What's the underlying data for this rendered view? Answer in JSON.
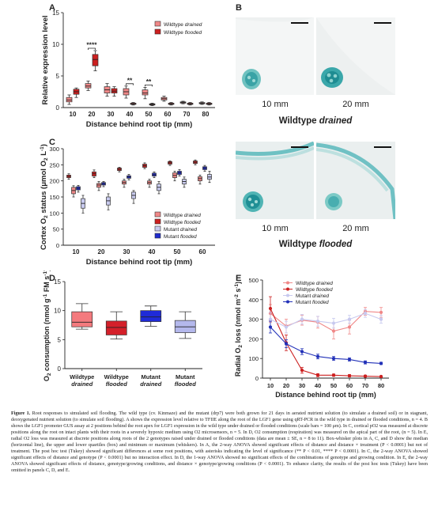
{
  "panels": {
    "A": {
      "letter": "A",
      "chart_data": {
        "type": "box",
        "ylabel": "Relative expression level",
        "xlabel": "Distance behind root tip (mm)",
        "ylim": [
          0,
          15
        ],
        "yticks": [
          0,
          5,
          10,
          15
        ],
        "categories": [
          "10",
          "20",
          "30",
          "40",
          "50",
          "60",
          "70",
          "80"
        ],
        "series": [
          {
            "name": "Wildtype drained",
            "color": "#f08888",
            "boxes": [
              [
                0.5,
                0.9,
                1.2,
                1.6,
                2.0
              ],
              [
                2.7,
                3.1,
                3.4,
                3.8,
                4.2
              ],
              [
                1.8,
                2.3,
                2.8,
                3.3,
                3.8
              ],
              [
                1.5,
                2.0,
                2.5,
                3.0,
                3.4
              ],
              [
                1.4,
                2.0,
                2.3,
                2.8,
                3.2
              ],
              [
                1.0,
                1.2,
                1.4,
                1.6,
                1.8
              ],
              [
                0.6,
                0.7,
                0.8,
                0.9,
                1.0
              ],
              [
                0.5,
                0.6,
                0.7,
                0.8,
                0.9
              ]
            ]
          },
          {
            "name": "Wildtype flooded",
            "color": "#cc2020",
            "boxes": [
              [
                1.6,
                2.1,
                2.5,
                2.9,
                3.1
              ],
              [
                5.8,
                6.6,
                7.6,
                8.4,
                9.0
              ],
              [
                1.8,
                2.3,
                2.6,
                3.0,
                3.3
              ],
              [
                0.4,
                0.5,
                0.6,
                0.7,
                0.8
              ],
              [
                0.3,
                0.4,
                0.5,
                0.6,
                0.7
              ],
              [
                0.4,
                0.5,
                0.6,
                0.7,
                0.8
              ],
              [
                0.4,
                0.5,
                0.6,
                0.7,
                0.8
              ],
              [
                0.4,
                0.5,
                0.6,
                0.7,
                0.8
              ]
            ]
          }
        ],
        "legend": [
          "Wildtype drained",
          "Wildtype flooded"
        ],
        "legend_italic": [
          "drained",
          "flooded"
        ],
        "annotations": [
          {
            "category": "20",
            "text": "****"
          },
          {
            "category": "40",
            "text": "**"
          },
          {
            "category": "50",
            "text": "**"
          }
        ]
      }
    },
    "B": {
      "letter": "B",
      "images": [
        {
          "label": "10 mm"
        },
        {
          "label": "20 mm"
        },
        {
          "label": "10 mm"
        },
        {
          "label": "20 mm"
        }
      ],
      "conditions": [
        {
          "genotype": "Wildtype",
          "treatment": "drained"
        },
        {
          "genotype": "Wildtype",
          "treatment": "flooded"
        }
      ]
    },
    "C": {
      "letter": "C",
      "chart_data": {
        "type": "box",
        "ylabel": "Cortex O2 status (μmol O2 L-1)",
        "ylabel_parts": [
          "Cortex O",
          "2",
          " status (μmol O",
          "2",
          " L",
          "-1",
          ")"
        ],
        "xlabel": "Distance behind root tip (mm)",
        "ylim": [
          0,
          300
        ],
        "yticks": [
          0,
          50,
          100,
          150,
          200,
          250,
          300
        ],
        "categories": [
          "10",
          "20",
          "30",
          "40",
          "50",
          "60"
        ],
        "series": [
          {
            "name": "Wildtype drained",
            "color": "#f08888",
            "boxes": [
              [
                150,
                160,
                170,
                180,
                185
              ],
              [
                170,
                180,
                187,
                192,
                198
              ],
              [
                180,
                190,
                195,
                200,
                205
              ],
              [
                180,
                190,
                195,
                200,
                205
              ],
              [
                200,
                210,
                217,
                225,
                230
              ],
              [
                190,
                200,
                207,
                213,
                218
              ]
            ]
          },
          {
            "name": "Wildtype flooded",
            "color": "#cc2020",
            "boxes": [
              [
                205,
                210,
                214,
                218,
                222
              ],
              [
                210,
                215,
                222,
                228,
                234
              ],
              [
                228,
                232,
                236,
                240,
                242
              ],
              [
                238,
                242,
                247,
                252,
                256
              ],
              [
                248,
                252,
                256,
                260,
                262
              ],
              [
                250,
                254,
                258,
                262,
                265
              ]
            ]
          },
          {
            "name": "Mutant drained",
            "color": "#c9cbef",
            "boxes": [
              [
                100,
                115,
                130,
                145,
                155
              ],
              [
                110,
                125,
                138,
                150,
                160
              ],
              [
                130,
                145,
                155,
                165,
                170
              ],
              [
                160,
                170,
                180,
                190,
                198
              ],
              [
                180,
                190,
                198,
                205,
                212
              ],
              [
                195,
                205,
                212,
                220,
                230
              ]
            ]
          },
          {
            "name": "Mutant flooded",
            "color": "#1f2bcc",
            "boxes": [
              [
                165,
                172,
                177,
                182,
                186
              ],
              [
                182,
                187,
                191,
                195,
                198
              ],
              [
                203,
                208,
                212,
                216,
                220
              ],
              [
                210,
                215,
                219,
                224,
                228
              ],
              [
                215,
                220,
                225,
                230,
                235
              ],
              [
                230,
                235,
                240,
                244,
                248
              ]
            ]
          }
        ],
        "legend": [
          "Wildtype drained",
          "Wildtype flooded",
          "Mutant drained",
          "Mutant flooded"
        ],
        "legend_italic": [
          "drained",
          "flooded",
          "drained",
          "flooded"
        ]
      }
    },
    "D": {
      "letter": "D",
      "chart_data": {
        "type": "box",
        "ylabel": "O2 consumption (nmol g-1 FM s-1)",
        "ylabel_parts": [
          "O",
          "2",
          " consumption (nmol g",
          "-1",
          " FM s",
          "-1",
          ")"
        ],
        "ylim": [
          0,
          15
        ],
        "yticks": [
          0,
          5,
          10,
          15
        ],
        "categories": [
          {
            "line1": "Wildtype",
            "line2": "drained"
          },
          {
            "line1": "Wildtype",
            "line2": "flooded"
          },
          {
            "line1": "Mutant",
            "line2": "drained"
          },
          {
            "line1": "Mutant",
            "line2": "flooded"
          }
        ],
        "boxes": [
          {
            "color": "#f47a7e",
            "values": [
              6.8,
              7.2,
              8.0,
              9.8,
              11.2
            ]
          },
          {
            "color": "#d4202a",
            "values": [
              5.1,
              5.8,
              7.1,
              8.2,
              9.8
            ]
          },
          {
            "color": "#1f2bd8",
            "values": [
              7.3,
              8.1,
              8.9,
              10.0,
              10.8
            ]
          },
          {
            "color": "#b4b8ec",
            "values": [
              5.2,
              6.2,
              7.2,
              8.3,
              9.8
            ]
          }
        ]
      }
    },
    "E": {
      "letter": "E",
      "chart_data": {
        "type": "line",
        "ylabel": "Radial O2 loss (nmol m-2 s-1)",
        "ylabel_parts": [
          "Radial O",
          "2",
          " loss (nmol m",
          "-2",
          " s",
          "-1",
          ")"
        ],
        "xlabel": "Distance behind root tip (mm)",
        "ylim": [
          0,
          500
        ],
        "yticks": [
          0,
          100,
          200,
          300,
          400,
          500
        ],
        "x": [
          10,
          20,
          30,
          40,
          50,
          60,
          70,
          80
        ],
        "series": [
          {
            "name": "Wildtype drained",
            "color": "#f08888",
            "values": [
              330,
              265,
              295,
              285,
              240,
              260,
              340,
              335
            ],
            "errors": [
              45,
              35,
              25,
              30,
              40,
              35,
              20,
              25
            ]
          },
          {
            "name": "Wildtype flooded",
            "color": "#cc2020",
            "values": [
              355,
              180,
              40,
              15,
              15,
              12,
              10,
              8
            ],
            "errors": [
              60,
              40,
              15,
              8,
              6,
              6,
              5,
              4
            ]
          },
          {
            "name": "Mutant drained",
            "color": "#c7c9ef",
            "values": [
              300,
              260,
              300,
              290,
              280,
              300,
              330,
              300
            ],
            "errors": [
              35,
              30,
              25,
              25,
              25,
              20,
              20,
              20
            ]
          },
          {
            "name": "Mutant flooded",
            "color": "#2231b8",
            "values": [
              260,
              175,
              135,
              110,
              100,
              95,
              80,
              75
            ],
            "errors": [
              30,
              20,
              15,
              12,
              10,
              8,
              8,
              6
            ]
          }
        ],
        "legend": [
          "Wildtype drained",
          "Wildtype flooded",
          "Mutant drained",
          "Mutant flooded"
        ],
        "legend_italic": [
          "drained",
          "flooded",
          "drained",
          "flooded"
        ]
      }
    }
  },
  "caption": {
    "lead": "Figure 1.",
    "text": " Root responses to simulated soil flooding. The wild type (cv. Kinmaze) and the mutant (drp7) were both grown for 21 days in aerated nutrient solution (to simulate a drained soil) or in stagnant, deoxygenated nutrient solution (to simulate soil flooding). A shows the expression level relative to TFIIE along the root of the LGF1 gene using qRT-PCR in the wild type in drained or flooded conditions, n = 4. B shows the LGF1 promoter GUS assay at 2 positions behind the root apex for LGF1 expression in the wild type under drained or flooded conditions (scale bars = 100 μm). In C, cortical pO2 was measured at discrete positions along the root on intact plants with their roots in a severely hypoxic medium using O2 microsensors, n = 5. In D, O2 consumption (respiration) was measured on the apical part of the root, (n = 5). In E, radial O2 loss was measured at discrete positions along roots of the 2 genotypes raised under drained or flooded conditions (data are mean ± SE, n = 8 to 11). Box-whisker plots in A, C, and D show the median (horizontal line), the upper and lower quartiles (box) and minimum or maximum (whiskers). In A, the 2-way ANOVA showed significant effects of distance and distance × treatment (P < 0.0001) but not of treatment. The post hoc test (Tukey) showed significant differences at some root positions, with asterisks indicating the level of significance (** P < 0.01, **** P < 0.0001). In C, the 2-way ANOVA showed significant effects of distance and genotype (P < 0.0001) but no interaction effect. In D, the 1-way ANOVA showed no significant effects of the combinations of genotype and growing condition. In E, the 2-way ANOVA showed significant effects of distance, genotype/growing conditions, and distance × genotype/growing conditions (P < 0.0001). To enhance clarity, the results of the post hoc tests (Tukey) have been omitted in panels C, D, and E."
  }
}
